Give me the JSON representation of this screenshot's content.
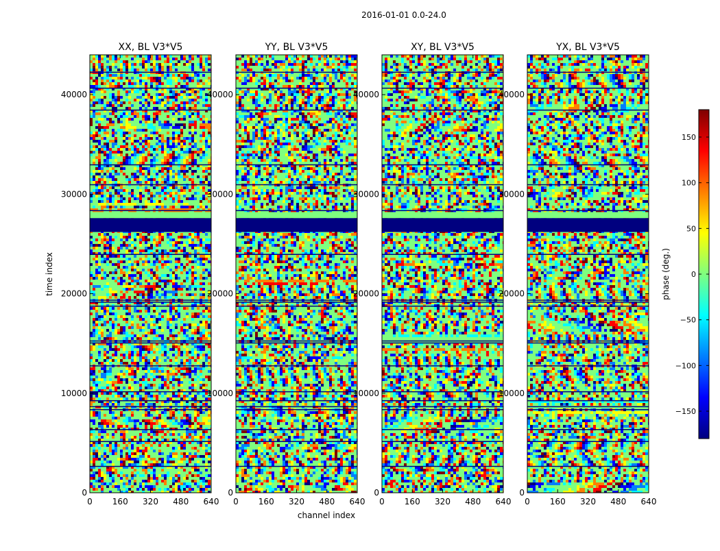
{
  "chart_data": {
    "type": "heatmap",
    "suptitle": "2016-01-01 0.0-24.0",
    "xlabel": "channel index",
    "ylabel": "time index",
    "xlim": [
      0,
      640
    ],
    "ylim": [
      0,
      44000
    ],
    "x_ticks": [
      0,
      160,
      320,
      480,
      640
    ],
    "y_ticks": [
      0,
      10000,
      20000,
      30000,
      40000
    ],
    "panels": [
      {
        "title": "XX, BL V3*V5",
        "polarization": "XX"
      },
      {
        "title": "YY, BL V3*V5",
        "polarization": "YY"
      },
      {
        "title": "XY, BL V3*V5",
        "polarization": "XY"
      },
      {
        "title": "YX, BL V3*V5",
        "polarization": "YX"
      }
    ],
    "colorbar": {
      "label": "phase (deg.)",
      "vmin": -180,
      "vmax": 180,
      "ticks": [
        -150,
        -100,
        -50,
        0,
        50,
        100,
        150
      ],
      "tick_labels": [
        "−150",
        "−100",
        "−50",
        "0",
        "50",
        "100",
        "150"
      ],
      "colormap": "jet",
      "colors": [
        "#00007f",
        "#0000ff",
        "#007fff",
        "#00ffff",
        "#7fff7f",
        "#ffff00",
        "#ff7f00",
        "#ff0000",
        "#7f0000"
      ]
    }
  }
}
